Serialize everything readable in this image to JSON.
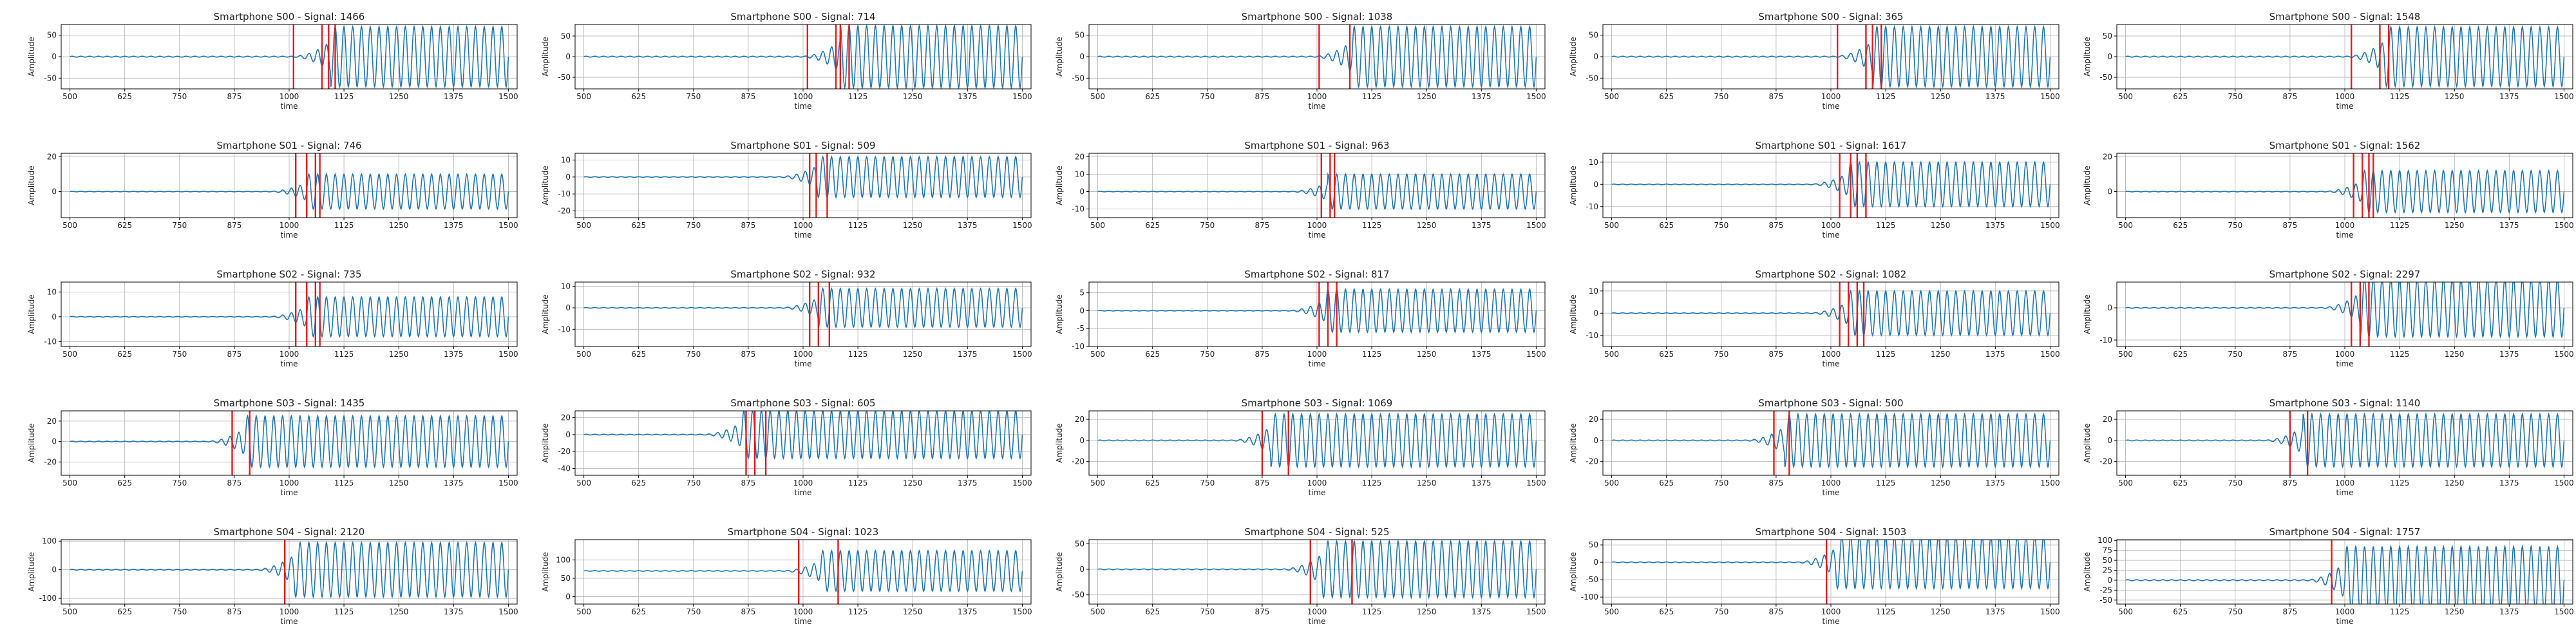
{
  "figure": {
    "line_color": "#1f77b4",
    "marker_color": "#e8191b",
    "grid_color": "#b0b0b0",
    "grid": true
  },
  "chart_data": [
    {
      "type": "line",
      "title": "Smartphone S00 - Signal: 1466",
      "xlabel": "time",
      "ylabel": "Amplitude",
      "xlim": [
        480,
        1520
      ],
      "ylim": [
        -75,
        75
      ],
      "xticks": [
        500,
        625,
        750,
        875,
        1000,
        1125,
        1250,
        1375,
        1500
      ],
      "yticks": [
        -50,
        0,
        50
      ],
      "onset": 1095,
      "amplitude": 70,
      "markers": [
        1010,
        1075,
        1090,
        1105
      ]
    },
    {
      "type": "line",
      "title": "Smartphone S00 - Signal: 714",
      "xlabel": "time",
      "ylabel": "Amplitude",
      "xlim": [
        480,
        1520
      ],
      "ylim": [
        -78,
        78
      ],
      "xticks": [
        500,
        625,
        750,
        875,
        1000,
        1125,
        1250,
        1375,
        1500
      ],
      "yticks": [
        -50,
        0,
        50
      ],
      "onset": 1085,
      "amplitude": 75,
      "markers": [
        1010,
        1075,
        1085,
        1105
      ]
    },
    {
      "type": "line",
      "title": "Smartphone S00 - Signal: 1038",
      "xlabel": "time",
      "ylabel": "Amplitude",
      "xlim": [
        480,
        1520
      ],
      "ylim": [
        -75,
        75
      ],
      "xticks": [
        500,
        625,
        750,
        875,
        1000,
        1125,
        1250,
        1375,
        1500
      ],
      "yticks": [
        -50,
        0,
        50
      ],
      "onset": 1080,
      "amplitude": 70,
      "markers": [
        1005,
        1075
      ]
    },
    {
      "type": "line",
      "title": "Smartphone S00 - Signal: 365",
      "xlabel": "time",
      "ylabel": "Amplitude",
      "xlim": [
        480,
        1520
      ],
      "ylim": [
        -75,
        75
      ],
      "xticks": [
        500,
        625,
        750,
        875,
        1000,
        1125,
        1250,
        1375,
        1500
      ],
      "yticks": [
        -50,
        0,
        50
      ],
      "onset": 1095,
      "amplitude": 70,
      "markers": [
        1015,
        1080,
        1095,
        1115
      ]
    },
    {
      "type": "line",
      "title": "Smartphone S00 - Signal: 1548",
      "xlabel": "time",
      "ylabel": "Amplitude",
      "xlim": [
        480,
        1520
      ],
      "ylim": [
        -78,
        78
      ],
      "xticks": [
        500,
        625,
        750,
        875,
        1000,
        1125,
        1250,
        1375,
        1500
      ],
      "yticks": [
        -50,
        0,
        50
      ],
      "onset": 1090,
      "amplitude": 72,
      "markers": [
        1015,
        1080,
        1100
      ]
    },
    {
      "type": "line",
      "title": "Smartphone S01 - Signal: 746",
      "xlabel": "time",
      "ylabel": "Amplitude",
      "xlim": [
        480,
        1520
      ],
      "ylim": [
        -15,
        22
      ],
      "xticks": [
        500,
        625,
        750,
        875,
        1000,
        1125,
        1250,
        1375,
        1500
      ],
      "yticks": [
        0,
        20
      ],
      "onset": 1040,
      "amplitude": 10,
      "markers": [
        1015,
        1040,
        1060,
        1070
      ]
    },
    {
      "type": "line",
      "title": "Smartphone S01 - Signal: 509",
      "xlabel": "time",
      "ylabel": "Amplitude",
      "xlim": [
        480,
        1520
      ],
      "ylim": [
        -24,
        14
      ],
      "xticks": [
        500,
        625,
        750,
        875,
        1000,
        1125,
        1250,
        1375,
        1500
      ],
      "yticks": [
        -20,
        -10,
        0,
        10
      ],
      "onset": 1030,
      "amplitude": 12,
      "markers": [
        1015,
        1030,
        1055
      ]
    },
    {
      "type": "line",
      "title": "Smartphone S01 - Signal: 963",
      "xlabel": "time",
      "ylabel": "Amplitude",
      "xlim": [
        480,
        1520
      ],
      "ylim": [
        -15,
        22
      ],
      "xticks": [
        500,
        625,
        750,
        875,
        1000,
        1125,
        1250,
        1375,
        1500
      ],
      "yticks": [
        -10,
        0,
        10,
        20
      ],
      "onset": 1025,
      "amplitude": 10,
      "markers": [
        1010,
        1030,
        1040
      ]
    },
    {
      "type": "line",
      "title": "Smartphone S01 - Signal: 1617",
      "xlabel": "time",
      "ylabel": "Amplitude",
      "xlim": [
        480,
        1520
      ],
      "ylim": [
        -15,
        14
      ],
      "xticks": [
        500,
        625,
        750,
        875,
        1000,
        1125,
        1250,
        1375,
        1500
      ],
      "yticks": [
        -10,
        0,
        10
      ],
      "onset": 1040,
      "amplitude": 10,
      "markers": [
        1020,
        1045,
        1060,
        1080
      ]
    },
    {
      "type": "line",
      "title": "Smartphone S01 - Signal: 1562",
      "xlabel": "time",
      "ylabel": "Amplitude",
      "xlim": [
        480,
        1520
      ],
      "ylim": [
        -15,
        22
      ],
      "xticks": [
        500,
        625,
        750,
        875,
        1000,
        1125,
        1250,
        1375,
        1500
      ],
      "yticks": [
        0,
        20
      ],
      "onset": 1040,
      "amplitude": 12,
      "markers": [
        1020,
        1040,
        1055,
        1065
      ]
    },
    {
      "type": "line",
      "title": "Smartphone S02 - Signal: 735",
      "xlabel": "time",
      "ylabel": "Amplitude",
      "xlim": [
        480,
        1520
      ],
      "ylim": [
        -12,
        14
      ],
      "xticks": [
        500,
        625,
        750,
        875,
        1000,
        1125,
        1250,
        1375,
        1500
      ],
      "yticks": [
        -10,
        0,
        10
      ],
      "onset": 1040,
      "amplitude": 8,
      "markers": [
        1015,
        1040,
        1060,
        1070
      ]
    },
    {
      "type": "line",
      "title": "Smartphone S02 - Signal: 932",
      "xlabel": "time",
      "ylabel": "Amplitude",
      "xlim": [
        480,
        1520
      ],
      "ylim": [
        -18,
        12
      ],
      "xticks": [
        500,
        625,
        750,
        875,
        1000,
        1125,
        1250,
        1375,
        1500
      ],
      "yticks": [
        -10,
        0,
        10
      ],
      "onset": 1035,
      "amplitude": 9,
      "markers": [
        1015,
        1035,
        1060
      ]
    },
    {
      "type": "line",
      "title": "Smartphone S02 - Signal: 817",
      "xlabel": "time",
      "ylabel": "Amplitude",
      "xlim": [
        480,
        1520
      ],
      "ylim": [
        -10,
        8
      ],
      "xticks": [
        500,
        625,
        750,
        875,
        1000,
        1125,
        1250,
        1375,
        1500
      ],
      "yticks": [
        -10,
        -5,
        0,
        5
      ],
      "onset": 1020,
      "amplitude": 6,
      "markers": [
        1005,
        1025,
        1045
      ]
    },
    {
      "type": "line",
      "title": "Smartphone S02 - Signal: 1082",
      "xlabel": "time",
      "ylabel": "Amplitude",
      "xlim": [
        480,
        1520
      ],
      "ylim": [
        -15,
        14
      ],
      "xticks": [
        500,
        625,
        750,
        875,
        1000,
        1125,
        1250,
        1375,
        1500
      ],
      "yticks": [
        -10,
        0,
        10
      ],
      "onset": 1040,
      "amplitude": 10,
      "markers": [
        1020,
        1040,
        1060,
        1075
      ]
    },
    {
      "type": "line",
      "title": "Smartphone S02 - Signal: 2297",
      "xlabel": "time",
      "ylabel": "Amplitude",
      "xlim": [
        480,
        1520
      ],
      "ylim": [
        -12,
        8
      ],
      "xticks": [
        500,
        625,
        750,
        875,
        1000,
        1125,
        1250,
        1375,
        1500
      ],
      "yticks": [
        -10,
        0
      ],
      "onset": 1035,
      "amplitude": 9,
      "markers": [
        1015,
        1035,
        1055
      ]
    },
    {
      "type": "line",
      "title": "Smartphone S03 - Signal: 1435",
      "xlabel": "time",
      "ylabel": "Amplitude",
      "xlim": [
        480,
        1520
      ],
      "ylim": [
        -33,
        30
      ],
      "xticks": [
        500,
        625,
        750,
        875,
        1000,
        1125,
        1250,
        1375,
        1500
      ],
      "yticks": [
        -20,
        0,
        20
      ],
      "onset": 900,
      "amplitude": 25,
      "markers": [
        870,
        910
      ]
    },
    {
      "type": "line",
      "title": "Smartphone S03 - Signal: 605",
      "xlabel": "time",
      "ylabel": "Amplitude",
      "xlim": [
        480,
        1520
      ],
      "ylim": [
        -48,
        28
      ],
      "xticks": [
        500,
        625,
        750,
        875,
        1000,
        1125,
        1250,
        1375,
        1500
      ],
      "yticks": [
        -40,
        -20,
        0,
        20
      ],
      "onset": 860,
      "amplitude": 28,
      "markers": [
        870,
        890,
        915
      ]
    },
    {
      "type": "line",
      "title": "Smartphone S03 - Signal: 1069",
      "xlabel": "time",
      "ylabel": "Amplitude",
      "xlim": [
        480,
        1520
      ],
      "ylim": [
        -33,
        28
      ],
      "xticks": [
        500,
        625,
        750,
        875,
        1000,
        1125,
        1250,
        1375,
        1500
      ],
      "yticks": [
        -20,
        0,
        20
      ],
      "onset": 895,
      "amplitude": 25,
      "markers": [
        875,
        935
      ]
    },
    {
      "type": "line",
      "title": "Smartphone S03 - Signal: 500",
      "xlabel": "time",
      "ylabel": "Amplitude",
      "xlim": [
        480,
        1520
      ],
      "ylim": [
        -33,
        28
      ],
      "xticks": [
        500,
        625,
        750,
        875,
        1000,
        1125,
        1250,
        1375,
        1500
      ],
      "yticks": [
        -20,
        0,
        20
      ],
      "onset": 895,
      "amplitude": 25,
      "markers": [
        870,
        905
      ]
    },
    {
      "type": "line",
      "title": "Smartphone S03 - Signal: 1140",
      "xlabel": "time",
      "ylabel": "Amplitude",
      "xlim": [
        480,
        1520
      ],
      "ylim": [
        -33,
        28
      ],
      "xticks": [
        500,
        625,
        750,
        875,
        1000,
        1125,
        1250,
        1375,
        1500
      ],
      "yticks": [
        -20,
        0,
        20
      ],
      "onset": 905,
      "amplitude": 25,
      "markers": [
        875,
        915
      ]
    },
    {
      "type": "line",
      "title": "Smartphone S04 - Signal: 2120",
      "xlabel": "time",
      "ylabel": "Amplitude",
      "xlim": [
        480,
        1520
      ],
      "ylim": [
        -120,
        105
      ],
      "xticks": [
        500,
        625,
        750,
        875,
        1000,
        1125,
        1250,
        1375,
        1500
      ],
      "yticks": [
        -100,
        0,
        100
      ],
      "onset": 1010,
      "amplitude": 95,
      "markers": [
        990
      ]
    },
    {
      "type": "line",
      "title": "Smartphone S04 - Signal: 1023",
      "xlabel": "time",
      "ylabel": "Amplitude",
      "xlim": [
        480,
        1520
      ],
      "ylim": [
        -20,
        155
      ],
      "xticks": [
        500,
        625,
        750,
        875,
        1000,
        1125,
        1250,
        1375,
        1500
      ],
      "yticks": [
        0,
        50,
        100
      ],
      "onset": 1040,
      "amplitude": 55,
      "offset": 70,
      "markers": [
        990,
        1080
      ]
    },
    {
      "type": "line",
      "title": "Smartphone S04 - Signal: 525",
      "xlabel": "time",
      "ylabel": "Amplitude",
      "xlim": [
        480,
        1520
      ],
      "ylim": [
        -68,
        58
      ],
      "xticks": [
        500,
        625,
        750,
        875,
        1000,
        1125,
        1250,
        1375,
        1500
      ],
      "yticks": [
        -50,
        0,
        50
      ],
      "onset": 1010,
      "amplitude": 55,
      "markers": [
        985,
        1080
      ]
    },
    {
      "type": "line",
      "title": "Smartphone S04 - Signal: 1503",
      "xlabel": "time",
      "ylabel": "Amplitude",
      "xlim": [
        480,
        1520
      ],
      "ylim": [
        -120,
        65
      ],
      "xticks": [
        500,
        625,
        750,
        875,
        1000,
        1125,
        1250,
        1375,
        1500
      ],
      "yticks": [
        -100,
        -50,
        0,
        50
      ],
      "onset": 1010,
      "amplitude": 75,
      "markers": [
        990
      ]
    },
    {
      "type": "line",
      "title": "Smartphone S04 - Signal: 1757",
      "xlabel": "time",
      "ylabel": "Amplitude",
      "xlim": [
        480,
        1520
      ],
      "ylim": [
        -60,
        102
      ],
      "xticks": [
        500,
        625,
        750,
        875,
        1000,
        1125,
        1250,
        1375,
        1500
      ],
      "yticks": [
        -50,
        -25,
        0,
        25,
        50,
        75,
        100
      ],
      "onset": 1000,
      "amplitude": 85,
      "markers": [
        970
      ]
    }
  ]
}
